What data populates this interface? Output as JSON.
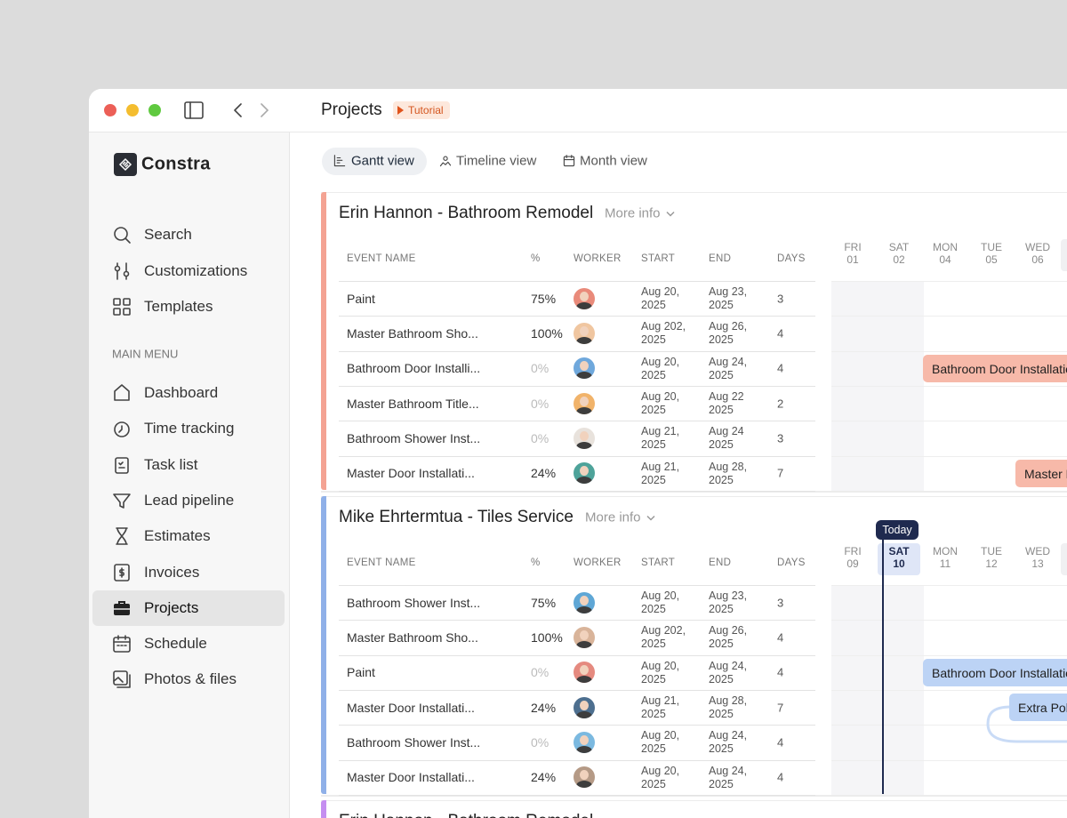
{
  "window": {
    "title": "Projects",
    "badge": "Tutorial"
  },
  "sidebar": {
    "brand": "Constra",
    "tools": [
      "Search",
      "Customizations",
      "Templates"
    ],
    "section": "MAIN MENU",
    "menu": [
      "Dashboard",
      "Time tracking",
      "Task list",
      "Lead pipeline",
      "Estimates",
      "Invoices",
      "Projects",
      "Schedule",
      "Photos & files"
    ],
    "active": 6
  },
  "views": [
    "Gantt view",
    "Timeline view",
    "Month view"
  ],
  "columns": [
    "EVENT NAME",
    "%",
    "WORKER",
    "START",
    "END",
    "DAYS"
  ],
  "today": "Today",
  "projects": [
    {
      "title": "Erin Hannon - Bathroom Remodel",
      "more": "More info",
      "days": [
        {
          "dow": "FRI",
          "date": "01"
        },
        {
          "dow": "SAT",
          "date": "02"
        },
        {
          "dow": "MON",
          "date": "04"
        },
        {
          "dow": "TUE",
          "date": "05"
        },
        {
          "dow": "WED",
          "date": "06"
        }
      ],
      "rows": [
        {
          "name": "Paint",
          "pct": "75%",
          "start": "Aug 20, 2025",
          "end": "Aug 23, 2025",
          "days": 3
        },
        {
          "name": "Master Bathroom Sho...",
          "pct": "100%",
          "start": "Aug 202, 2025",
          "end": "Aug 26, 2025",
          "days": 4
        },
        {
          "name": "Bathroom Door Installi...",
          "pct": "0%",
          "start": "Aug 20, 2025",
          "end": "Aug 24, 2025",
          "days": 4
        },
        {
          "name": "Master Bathroom Title...",
          "pct": "0%",
          "start": "Aug 20, 2025",
          "end": "Aug 22 2025",
          "days": 2
        },
        {
          "name": "Bathroom Shower Inst...",
          "pct": "0%",
          "start": "Aug 21, 2025",
          "end": "Aug 24 2025",
          "days": 3
        },
        {
          "name": "Master Door Installati...",
          "pct": "24%",
          "start": "Aug 21, 2025",
          "end": "Aug 28, 2025",
          "days": 7
        }
      ],
      "bars": [
        "Bathroom Door Installation",
        "Master Door Installation"
      ]
    },
    {
      "title": "Mike Ehrtermtua - Tiles Service",
      "more": "More info",
      "days": [
        {
          "dow": "FRI",
          "date": "09"
        },
        {
          "dow": "SAT",
          "date": "10"
        },
        {
          "dow": "MON",
          "date": "11"
        },
        {
          "dow": "TUE",
          "date": "12"
        },
        {
          "dow": "WED",
          "date": "13"
        }
      ],
      "rows": [
        {
          "name": "Bathroom Shower Inst...",
          "pct": "75%",
          "start": "Aug 20, 2025",
          "end": "Aug 23, 2025",
          "days": 3
        },
        {
          "name": "Master Bathroom Sho...",
          "pct": "100%",
          "start": "Aug 202, 2025",
          "end": "Aug 26, 2025",
          "days": 4
        },
        {
          "name": "Paint",
          "pct": "0%",
          "start": "Aug 20, 2025",
          "end": "Aug 24, 2025",
          "days": 4
        },
        {
          "name": "Master Door Installati...",
          "pct": "24%",
          "start": "Aug 21, 2025",
          "end": "Aug 28, 2025",
          "days": 7
        },
        {
          "name": "Bathroom Shower Inst...",
          "pct": "0%",
          "start": "Aug 20, 2025",
          "end": "Aug 24, 2025",
          "days": 4
        },
        {
          "name": "Master Door Installati...",
          "pct": "24%",
          "start": "Aug 20, 2025",
          "end": "Aug 24, 2025",
          "days": 4
        }
      ],
      "bars": [
        "Bathroom Door Installation",
        "Extra Polish"
      ]
    }
  ],
  "next_project": {
    "title": "Erin Hannon - Bathroom Remodel"
  }
}
